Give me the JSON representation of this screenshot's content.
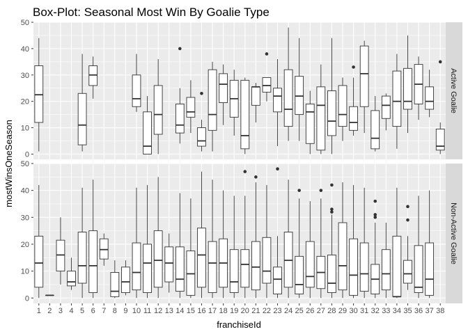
{
  "chart_data": {
    "type": "boxplot",
    "title": "Box-Plot: Seasonal Most Win By Goalie Type",
    "xlabel": "franchiseId",
    "ylabel": "mostWinsOneSeason",
    "ylim": [
      -2,
      50
    ],
    "y_ticks": [
      0,
      10,
      20,
      30,
      40,
      50
    ],
    "grid": true,
    "categories": [
      "1",
      "2",
      "3",
      "4",
      "5",
      "6",
      "7",
      "8",
      "9",
      "10",
      "11",
      "12",
      "13",
      "14",
      "15",
      "16",
      "17",
      "18",
      "19",
      "20",
      "21",
      "22",
      "23",
      "24",
      "25",
      "26",
      "27",
      "28",
      "29",
      "30",
      "31",
      "32",
      "33",
      "34",
      "35",
      "36",
      "37",
      "38"
    ],
    "panels": [
      {
        "label": "Active Goalie",
        "boxes": [
          {
            "x": "1",
            "min": 1,
            "q1": 12,
            "median": 22.5,
            "q3": 33.5,
            "max": 44,
            "outliers": []
          },
          {
            "x": "5",
            "min": 1,
            "q1": 3.5,
            "median": 11,
            "q3": 23,
            "max": 38,
            "outliers": []
          },
          {
            "x": "6",
            "min": 21,
            "q1": 26,
            "median": 30,
            "q3": 33.5,
            "max": 37,
            "outliers": []
          },
          {
            "x": "10",
            "min": 16,
            "q1": 18,
            "median": 21,
            "q3": 30,
            "max": 38,
            "outliers": []
          },
          {
            "x": "11",
            "min": 0,
            "q1": 0,
            "median": 3,
            "q3": 16,
            "max": 22,
            "outliers": []
          },
          {
            "x": "12",
            "min": 0,
            "q1": 7.5,
            "median": 15,
            "q3": 26,
            "max": 36,
            "outliers": []
          },
          {
            "x": "14",
            "min": 4,
            "q1": 8,
            "median": 11,
            "q3": 19,
            "max": 25,
            "outliers": [
              40
            ]
          },
          {
            "x": "15",
            "min": 8,
            "q1": 14,
            "median": 16,
            "q3": 21.5,
            "max": 28,
            "outliers": []
          },
          {
            "x": "16",
            "min": 1,
            "q1": 3,
            "median": 5,
            "q3": 10,
            "max": 13,
            "outliers": [
              23
            ]
          },
          {
            "x": "17",
            "min": 1,
            "q1": 9,
            "median": 15,
            "q3": 32,
            "max": 35,
            "outliers": []
          },
          {
            "x": "18",
            "min": 11,
            "q1": 19.5,
            "median": 26.5,
            "q3": 30.5,
            "max": 34,
            "outliers": []
          },
          {
            "x": "19",
            "min": 7,
            "q1": 14,
            "median": 21,
            "q3": 28,
            "max": 32,
            "outliers": []
          },
          {
            "x": "20",
            "min": 0,
            "q1": 2,
            "median": 7,
            "q3": 28,
            "max": 29,
            "outliers": []
          },
          {
            "x": "21",
            "min": 12,
            "q1": 18.5,
            "median": 25.5,
            "q3": 25.5,
            "max": 27,
            "outliers": []
          },
          {
            "x": "22",
            "min": 20,
            "q1": 23.5,
            "median": 26,
            "q3": 29,
            "max": 29,
            "outliers": [
              38
            ]
          },
          {
            "x": "23",
            "min": 3,
            "q1": 16,
            "median": 22,
            "q3": 25,
            "max": 36,
            "outliers": []
          },
          {
            "x": "24",
            "min": 5,
            "q1": 10.5,
            "median": 17,
            "q3": 32,
            "max": 48,
            "outliers": []
          },
          {
            "x": "25",
            "min": 5,
            "q1": 15,
            "median": 22,
            "q3": 29.5,
            "max": 44,
            "outliers": []
          },
          {
            "x": "26",
            "min": 0,
            "q1": 4,
            "median": 16,
            "q3": 19,
            "max": 24,
            "outliers": []
          },
          {
            "x": "27",
            "min": 0,
            "q1": 1.5,
            "median": 18.5,
            "q3": 25.5,
            "max": 34,
            "outliers": []
          },
          {
            "x": "28",
            "min": 0,
            "q1": 7,
            "median": 12.5,
            "q3": 24,
            "max": 44,
            "outliers": []
          },
          {
            "x": "29",
            "min": 5,
            "q1": 10.5,
            "median": 15,
            "q3": 26,
            "max": 29,
            "outliers": []
          },
          {
            "x": "30",
            "min": 7,
            "q1": 9,
            "median": 12,
            "q3": 18,
            "max": 29,
            "outliers": [
              33
            ]
          },
          {
            "x": "31",
            "min": 8,
            "q1": 18,
            "median": 30.5,
            "q3": 41,
            "max": 43,
            "outliers": []
          },
          {
            "x": "32",
            "min": 1,
            "q1": 2,
            "median": 6,
            "q3": 16.5,
            "max": 22,
            "outliers": []
          },
          {
            "x": "33",
            "min": 9,
            "q1": 13.5,
            "median": 18.5,
            "q3": 22,
            "max": 23,
            "outliers": []
          },
          {
            "x": "34",
            "min": 2,
            "q1": 10.5,
            "median": 20,
            "q3": 31.5,
            "max": 38,
            "outliers": []
          },
          {
            "x": "35",
            "min": 8,
            "q1": 17,
            "median": 20,
            "q3": 32.5,
            "max": 45,
            "outliers": []
          },
          {
            "x": "36",
            "min": 13,
            "q1": 19,
            "median": 26.5,
            "q3": 34,
            "max": 37,
            "outliers": []
          },
          {
            "x": "37",
            "min": 14,
            "q1": 17,
            "median": 20,
            "q3": 25.5,
            "max": 32,
            "outliers": []
          },
          {
            "x": "38",
            "min": 0,
            "q1": 1.5,
            "median": 3,
            "q3": 9.5,
            "max": 12,
            "outliers": [
              35
            ]
          }
        ]
      },
      {
        "label": "Non-Active Goalie",
        "boxes": [
          {
            "x": "1",
            "min": 0,
            "q1": 4,
            "median": 13,
            "q3": 23,
            "max": 42,
            "outliers": []
          },
          {
            "x": "2",
            "min": 1,
            "q1": 1,
            "median": 1,
            "q3": 1,
            "max": 1,
            "outliers": []
          },
          {
            "x": "3",
            "min": 5,
            "q1": 10,
            "median": 16,
            "q3": 21.5,
            "max": 30,
            "outliers": []
          },
          {
            "x": "4",
            "min": 3,
            "q1": 4.5,
            "median": 6,
            "q3": 10,
            "max": 15,
            "outliers": []
          },
          {
            "x": "5",
            "min": 0,
            "q1": 5.5,
            "median": 12,
            "q3": 24.5,
            "max": 41,
            "outliers": []
          },
          {
            "x": "6",
            "min": 0,
            "q1": 2,
            "median": 12,
            "q3": 25,
            "max": 44,
            "outliers": []
          },
          {
            "x": "7",
            "min": 12,
            "q1": 14.5,
            "median": 18,
            "q3": 22,
            "max": 24,
            "outliers": []
          },
          {
            "x": "8",
            "min": 0,
            "q1": 0.5,
            "median": 2.5,
            "q3": 9.5,
            "max": 14,
            "outliers": []
          },
          {
            "x": "9",
            "min": 1,
            "q1": 2,
            "median": 6,
            "q3": 11.5,
            "max": 14,
            "outliers": []
          },
          {
            "x": "10",
            "min": 0,
            "q1": 3,
            "median": 9.5,
            "q3": 20.5,
            "max": 41,
            "outliers": []
          },
          {
            "x": "11",
            "min": 0,
            "q1": 2,
            "median": 13,
            "q3": 20,
            "max": 42,
            "outliers": []
          },
          {
            "x": "12",
            "min": 0,
            "q1": 4,
            "median": 14,
            "q3": 25,
            "max": 45,
            "outliers": []
          },
          {
            "x": "13",
            "min": 2,
            "q1": 6,
            "median": 13,
            "q3": 19,
            "max": 24,
            "outliers": []
          },
          {
            "x": "14",
            "min": 0,
            "q1": 2.5,
            "median": 7,
            "q3": 19,
            "max": 39,
            "outliers": []
          },
          {
            "x": "15",
            "min": 0,
            "q1": 1,
            "median": 9,
            "q3": 17.5,
            "max": 37,
            "outliers": []
          },
          {
            "x": "16",
            "min": 0,
            "q1": 4,
            "median": 16,
            "q3": 26,
            "max": 47,
            "outliers": []
          },
          {
            "x": "17",
            "min": 0,
            "q1": 2,
            "median": 13,
            "q3": 21,
            "max": 44,
            "outliers": []
          },
          {
            "x": "18",
            "min": 0,
            "q1": 4,
            "median": 13,
            "q3": 22,
            "max": 40,
            "outliers": []
          },
          {
            "x": "19",
            "min": 0,
            "q1": 2,
            "median": 6,
            "q3": 18,
            "max": 38,
            "outliers": []
          },
          {
            "x": "20",
            "min": 0,
            "q1": 4,
            "median": 12.5,
            "q3": 18,
            "max": 38,
            "outliers": [
              47
            ]
          },
          {
            "x": "21",
            "min": 0,
            "q1": 3,
            "median": 11.5,
            "q3": 21,
            "max": 43,
            "outliers": [
              45
            ]
          },
          {
            "x": "22",
            "min": 0,
            "q1": 5.5,
            "median": 10,
            "q3": 22.5,
            "max": 42,
            "outliers": []
          },
          {
            "x": "23",
            "min": 0,
            "q1": 1.5,
            "median": 7,
            "q3": 11.5,
            "max": 23,
            "outliers": [
              48
            ]
          },
          {
            "x": "24",
            "min": 0,
            "q1": 4,
            "median": 14,
            "q3": 24.5,
            "max": 44,
            "outliers": []
          },
          {
            "x": "25",
            "min": 0,
            "q1": 1.5,
            "median": 5,
            "q3": 15.5,
            "max": 37,
            "outliers": [
              40
            ]
          },
          {
            "x": "26",
            "min": 0,
            "q1": 4,
            "median": 8,
            "q3": 21,
            "max": 36,
            "outliers": []
          },
          {
            "x": "27",
            "min": 0,
            "q1": 3.5,
            "median": 9.5,
            "q3": 15.5,
            "max": 37,
            "outliers": [
              40
            ]
          },
          {
            "x": "28",
            "min": 0,
            "q1": 2,
            "median": 5.5,
            "q3": 16,
            "max": 31,
            "outliers": [
              32,
              33,
              42
            ]
          },
          {
            "x": "29",
            "min": 0,
            "q1": 3,
            "median": 12,
            "q3": 28,
            "max": 43,
            "outliers": []
          },
          {
            "x": "30",
            "min": 0,
            "q1": 1,
            "median": 8.5,
            "q3": 22,
            "max": 42,
            "outliers": []
          },
          {
            "x": "31",
            "min": 0,
            "q1": 2.5,
            "median": 9,
            "q3": 20.5,
            "max": 41,
            "outliers": []
          },
          {
            "x": "32",
            "min": 0,
            "q1": 1.5,
            "median": 7,
            "q3": 12.5,
            "max": 28,
            "outliers": [
              30,
              31,
              36
            ]
          },
          {
            "x": "33",
            "min": 0,
            "q1": 3,
            "median": 9,
            "q3": 18,
            "max": 28,
            "outliers": []
          },
          {
            "x": "34",
            "min": 0,
            "q1": 0.5,
            "median": 0.5,
            "q3": 23,
            "max": 41,
            "outliers": []
          },
          {
            "x": "35",
            "min": 3,
            "q1": 5.5,
            "median": 9,
            "q3": 14,
            "max": 23,
            "outliers": [
              29,
              34
            ]
          },
          {
            "x": "36",
            "min": 0,
            "q1": 2,
            "median": 4,
            "q3": 19.5,
            "max": 38,
            "outliers": []
          },
          {
            "x": "37",
            "min": 0,
            "q1": 1,
            "median": 7,
            "q3": 20.5,
            "max": 40,
            "outliers": []
          }
        ]
      }
    ]
  }
}
